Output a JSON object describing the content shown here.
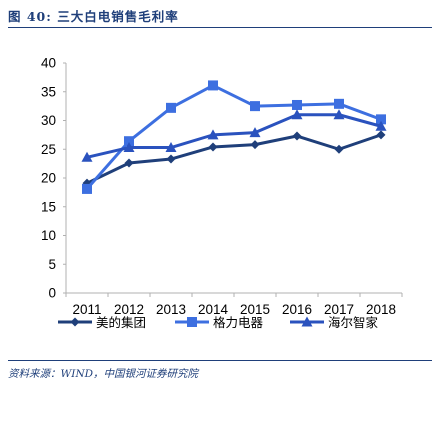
{
  "figure": {
    "number": "图 40:",
    "title": "三大白电销售毛利率",
    "source": "资料来源：WIND，中国银河证券研究院"
  },
  "chart_data": {
    "type": "line",
    "title": "",
    "xlabel": "",
    "ylabel": "",
    "categories": [
      "2011",
      "2012",
      "2013",
      "2014",
      "2015",
      "2016",
      "2017",
      "2018"
    ],
    "ylim": [
      0,
      40
    ],
    "yticks": [
      0,
      5,
      10,
      15,
      20,
      25,
      30,
      35,
      40
    ],
    "grid": false,
    "legend_position": "bottom",
    "series": [
      {
        "name": "美的集团",
        "color": "#1f3f7a",
        "marker": "diamond",
        "values": [
          19.1,
          22.6,
          23.3,
          25.4,
          25.8,
          27.3,
          25.0,
          27.5
        ]
      },
      {
        "name": "格力电器",
        "color": "#3d6fe0",
        "marker": "square",
        "values": [
          18.1,
          26.4,
          32.2,
          36.1,
          32.5,
          32.7,
          32.9,
          30.2
        ]
      },
      {
        "name": "海尔智家",
        "color": "#2a52be",
        "marker": "triangle",
        "values": [
          23.6,
          25.3,
          25.3,
          27.5,
          27.9,
          31.0,
          31.0,
          29.0
        ]
      }
    ]
  }
}
